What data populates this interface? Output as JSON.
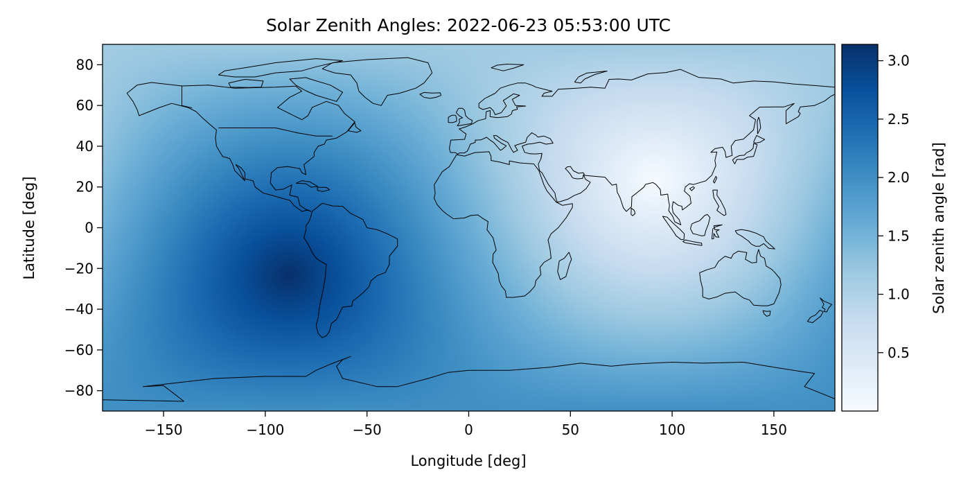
{
  "chart_data": {
    "type": "heatmap",
    "title": "Solar Zenith Angles: 2022-06-23 05:53:00 UTC",
    "xlabel": "Longitude [deg]",
    "ylabel": "Latitude [deg]",
    "xlim": [
      -180,
      180
    ],
    "ylim": [
      -90,
      90
    ],
    "xticks": [
      -150,
      -100,
      -50,
      0,
      50,
      100,
      150
    ],
    "yticks": [
      -80,
      -60,
      -40,
      -20,
      0,
      20,
      40,
      60,
      80
    ],
    "xtick_labels": [
      "−150",
      "−100",
      "−50",
      "0",
      "50",
      "100",
      "150"
    ],
    "ytick_labels": [
      "−80",
      "−60",
      "−40",
      "−20",
      "0",
      "20",
      "40",
      "60",
      "80"
    ],
    "field": {
      "quantity": "solar zenith angle",
      "units": "rad",
      "subsolar_point": [
        91.5,
        23.4
      ],
      "antisolar_point": [
        -88.5,
        -23.4
      ],
      "min": 0.0,
      "max": 3.14
    },
    "colorbar": {
      "label": "Solar zenith angle [rad]",
      "colormap": "Blues",
      "range": [
        0.0,
        3.14
      ],
      "ticks": [
        0.5,
        1.0,
        1.5,
        2.0,
        2.5,
        3.0
      ],
      "tick_labels": [
        "0.5",
        "1.0",
        "1.5",
        "2.0",
        "2.5",
        "3.0"
      ],
      "colors": [
        "#f7fbff",
        "#deebf7",
        "#c6dbef",
        "#9ecae1",
        "#6baed6",
        "#4292c6",
        "#2171b5",
        "#08519c",
        "#08306b"
      ]
    },
    "coastlines": true,
    "borders": true
  }
}
